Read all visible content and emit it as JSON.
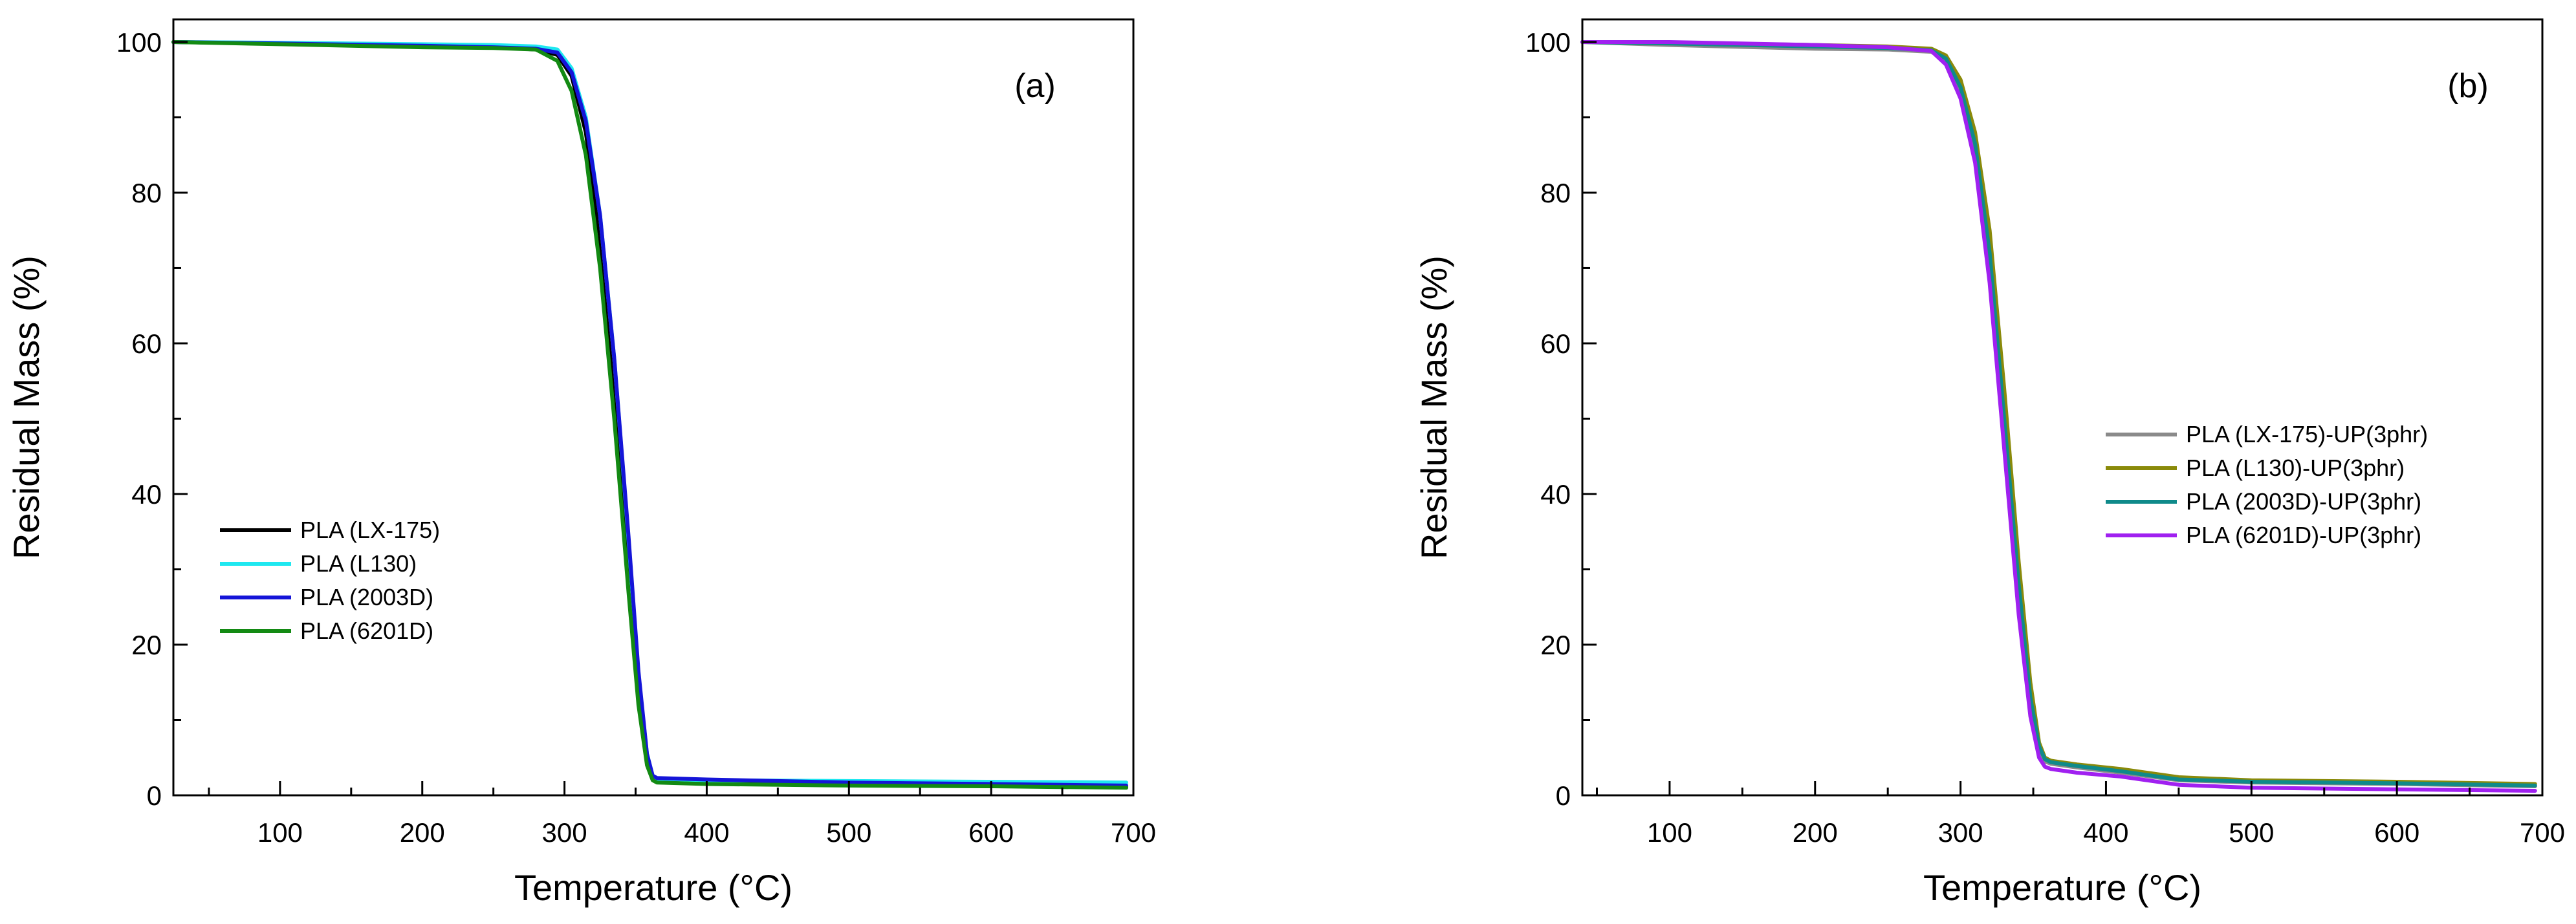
{
  "chart_data": [
    {
      "type": "line",
      "panel_label": "(a)",
      "xlabel": "Temperature (°C)",
      "ylabel": "Residual Mass (%)",
      "xlim": [
        25,
        700
      ],
      "ylim": [
        0,
        103
      ],
      "xticks": [
        100,
        200,
        300,
        400,
        500,
        600,
        700
      ],
      "yticks": [
        0,
        20,
        40,
        60,
        80,
        100
      ],
      "grid": false,
      "legend_position": "lower-left",
      "series": [
        {
          "name": "PLA (LX-175)",
          "color": "#000000",
          "x": [
            25,
            100,
            200,
            250,
            280,
            295,
            305,
            315,
            325,
            335,
            345,
            352,
            358,
            362,
            365,
            400,
            500,
            600,
            695
          ],
          "y": [
            100,
            99.8,
            99.5,
            99.3,
            99.0,
            98.3,
            95.5,
            88.0,
            74.0,
            54.0,
            30.0,
            14.0,
            4.5,
            2.3,
            1.9,
            1.7,
            1.4,
            1.3,
            1.1
          ]
        },
        {
          "name": "PLA (L130)",
          "color": "#1fe8f0",
          "x": [
            25,
            100,
            200,
            250,
            280,
            295,
            305,
            315,
            325,
            335,
            345,
            352,
            358,
            362,
            365,
            400,
            500,
            600,
            695
          ],
          "y": [
            100,
            99.9,
            99.7,
            99.6,
            99.4,
            99.0,
            96.5,
            90.0,
            77.0,
            58.0,
            34.0,
            16.0,
            5.5,
            2.6,
            2.2,
            2.0,
            1.9,
            1.8,
            1.7
          ]
        },
        {
          "name": "PLA (2003D)",
          "color": "#1515d8",
          "x": [
            25,
            100,
            200,
            250,
            280,
            295,
            305,
            315,
            325,
            335,
            345,
            352,
            358,
            362,
            365,
            400,
            500,
            600,
            695
          ],
          "y": [
            100,
            99.8,
            99.5,
            99.3,
            99.1,
            98.6,
            96.0,
            89.5,
            77.0,
            58.0,
            34.5,
            16.5,
            5.5,
            2.6,
            2.3,
            2.1,
            1.7,
            1.5,
            1.3
          ]
        },
        {
          "name": "PLA (6201D)",
          "color": "#138a13",
          "x": [
            25,
            100,
            200,
            250,
            280,
            295,
            305,
            315,
            325,
            335,
            345,
            352,
            358,
            362,
            365,
            400,
            500,
            600,
            695
          ],
          "y": [
            100,
            99.7,
            99.3,
            99.2,
            99.0,
            97.5,
            93.5,
            85.0,
            70.0,
            50.0,
            27.0,
            12.0,
            4.0,
            2.0,
            1.7,
            1.5,
            1.3,
            1.2,
            1.0
          ]
        }
      ]
    },
    {
      "type": "line",
      "panel_label": "(b)",
      "xlabel": "Temperature (°C)",
      "ylabel": "Residual Mass (%)",
      "xlim": [
        40,
        700
      ],
      "ylim": [
        0,
        103
      ],
      "xticks": [
        100,
        200,
        300,
        400,
        500,
        600,
        700
      ],
      "yticks": [
        0,
        20,
        40,
        60,
        80,
        100
      ],
      "grid": false,
      "legend_position": "center-right",
      "series": [
        {
          "name": "PLA (LX-175)-UP(3phr)",
          "color": "#8a8a8a",
          "x": [
            40,
            100,
            200,
            250,
            280,
            290,
            300,
            310,
            320,
            330,
            340,
            348,
            354,
            358,
            362,
            380,
            410,
            450,
            500,
            600,
            695
          ],
          "y": [
            100,
            99.6,
            99.1,
            99.0,
            98.7,
            97.5,
            93.5,
            85.0,
            70.0,
            48.0,
            26.0,
            12.0,
            6.0,
            4.5,
            4.2,
            3.7,
            3.0,
            2.0,
            1.7,
            1.5,
            1.2
          ]
        },
        {
          "name": "PLA (L130)-UP(3phr)",
          "color": "#8a8a0a",
          "x": [
            40,
            100,
            200,
            250,
            280,
            290,
            300,
            310,
            320,
            330,
            340,
            348,
            354,
            358,
            362,
            380,
            410,
            450,
            500,
            600,
            695
          ],
          "y": [
            100,
            99.9,
            99.6,
            99.4,
            99.1,
            98.2,
            95.0,
            88.0,
            75.0,
            54.0,
            31.0,
            15.0,
            7.0,
            5.0,
            4.6,
            4.1,
            3.5,
            2.4,
            2.0,
            1.8,
            1.5
          ]
        },
        {
          "name": "PLA (2003D)-UP(3phr)",
          "color": "#0f8a8a",
          "x": [
            40,
            100,
            200,
            250,
            280,
            290,
            300,
            310,
            320,
            330,
            340,
            348,
            354,
            358,
            362,
            380,
            410,
            450,
            500,
            600,
            695
          ],
          "y": [
            100,
            99.8,
            99.4,
            99.2,
            98.9,
            97.8,
            94.0,
            86.5,
            72.0,
            50.0,
            28.0,
            13.0,
            6.5,
            4.8,
            4.4,
            3.9,
            3.2,
            2.1,
            1.8,
            1.6,
            1.3
          ]
        },
        {
          "name": "PLA (6201D)-UP(3phr)",
          "color": "#a020f0",
          "x": [
            40,
            100,
            200,
            250,
            280,
            290,
            300,
            310,
            320,
            330,
            340,
            348,
            354,
            358,
            362,
            380,
            410,
            450,
            500,
            600,
            695
          ],
          "y": [
            100,
            100,
            99.6,
            99.3,
            98.8,
            97.0,
            92.5,
            84.0,
            68.0,
            46.0,
            24.0,
            10.5,
            5.0,
            3.8,
            3.5,
            3.0,
            2.5,
            1.4,
            1.0,
            0.8,
            0.6
          ]
        }
      ]
    }
  ]
}
